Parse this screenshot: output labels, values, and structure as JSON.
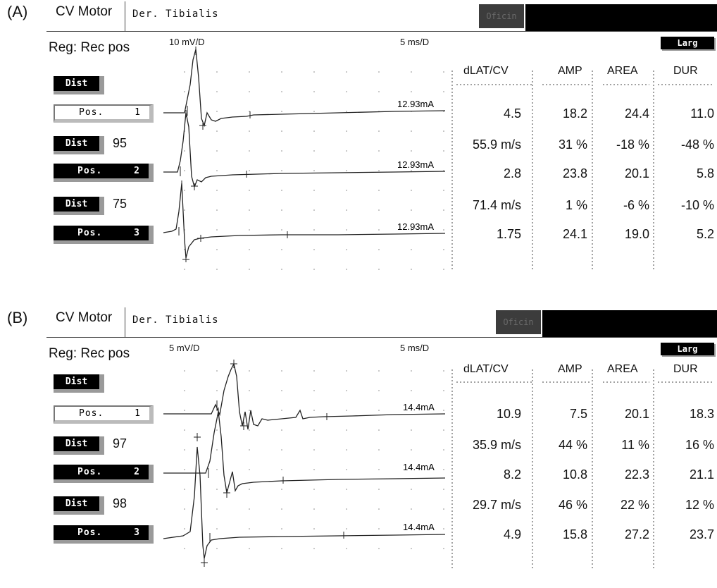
{
  "panels": [
    {
      "label": "(A)",
      "title": "CV Motor",
      "muscle": "Der. Tibialis",
      "oficin": "Oficin",
      "reg": "Reg: Rec pos",
      "sensitivity": "10 mV/D",
      "sweep": "5 ms/D",
      "larg": "Larg",
      "headers": [
        "dLAT/CV",
        "AMP",
        "AREA",
        "DUR"
      ],
      "controls": [
        {
          "label": "Dist",
          "type": "dist",
          "value": ""
        },
        {
          "label": "Pos.",
          "num": "1",
          "type": "pos-white"
        },
        {
          "label": "Dist",
          "type": "dist",
          "value": "95"
        },
        {
          "label": "Pos.",
          "num": "2",
          "type": "pos"
        },
        {
          "label": "Dist",
          "type": "dist",
          "value": "75"
        },
        {
          "label": "Pos.",
          "num": "3",
          "type": "pos"
        }
      ],
      "stim": [
        "12.93mA",
        "12.93mA",
        "12.93mA"
      ],
      "rows": [
        [
          "4.5",
          "18.2",
          "24.4",
          "11.0"
        ],
        [
          "55.9 m/s",
          "31 %",
          "-18 %",
          "-48 %"
        ],
        [
          "2.8",
          "23.8",
          "20.1",
          "5.8"
        ],
        [
          "71.4 m/s",
          "1 %",
          "-6 %",
          "-10 %"
        ],
        [
          "1.75",
          "24.1",
          "19.0",
          "5.2"
        ]
      ]
    },
    {
      "label": "(B)",
      "title": "CV Motor",
      "muscle": "Der. Tibialis",
      "oficin": "Oficin",
      "reg": "Reg: Rec pos",
      "sensitivity": "5 mV/D",
      "sweep": "5 ms/D",
      "larg": "Larg",
      "headers": [
        "dLAT/CV",
        "AMP",
        "AREA",
        "DUR"
      ],
      "controls": [
        {
          "label": "Dist",
          "type": "dist",
          "value": ""
        },
        {
          "label": "Pos.",
          "num": "1",
          "type": "pos-white"
        },
        {
          "label": "Dist",
          "type": "dist",
          "value": "97"
        },
        {
          "label": "Pos.",
          "num": "2",
          "type": "pos"
        },
        {
          "label": "Dist",
          "type": "dist",
          "value": "98"
        },
        {
          "label": "Pos.",
          "num": "3",
          "type": "pos"
        }
      ],
      "stim": [
        "14.4mA",
        "14.4mA",
        "14.4mA"
      ],
      "rows": [
        [
          "10.9",
          "7.5",
          "20.1",
          "18.3"
        ],
        [
          "35.9 m/s",
          "44 %",
          "11 %",
          "16 %"
        ],
        [
          "8.2",
          "10.8",
          "22.3",
          "21.1"
        ],
        [
          "29.7 m/s",
          "46 %",
          "22 %",
          "12 %"
        ],
        [
          "4.9",
          "15.8",
          "27.2",
          "23.7"
        ]
      ]
    }
  ]
}
